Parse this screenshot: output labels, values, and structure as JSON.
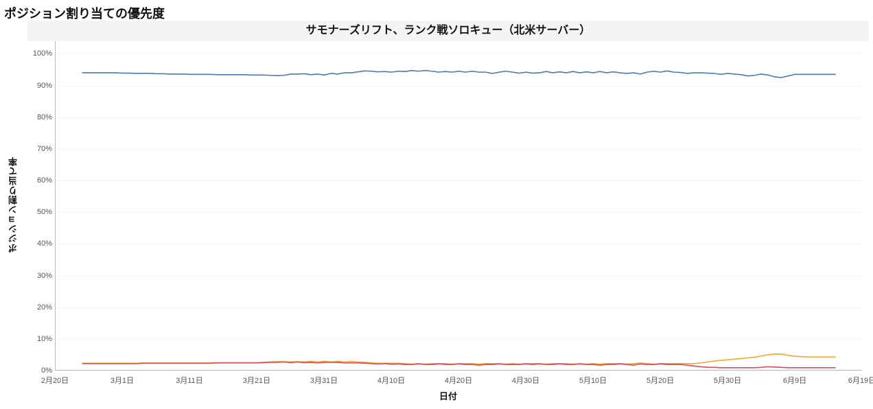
{
  "section_title": "ポジション割り当ての優先度",
  "chart": {
    "type": "line",
    "title": "サモナーズリフト、ランク戦ソロキュー（北米サーバー）",
    "title_fontsize": 16,
    "title_background": "#f4f4f4",
    "x_axis": {
      "label": "日付",
      "label_fontsize": 13,
      "ticks": [
        "2月20日",
        "3月1日",
        "3月11日",
        "3月21日",
        "3月31日",
        "4月10日",
        "4月20日",
        "4月30日",
        "5月10日",
        "5月20日",
        "5月30日",
        "6月9日",
        "6月19日"
      ],
      "tick_fontsize": 11,
      "tick_color": "#555555",
      "range_index": [
        0,
        120
      ]
    },
    "y_axis": {
      "label": "ポジション割り当て率",
      "label_fontsize": 13,
      "ticks": [
        "0%",
        "10%",
        "20%",
        "30%",
        "40%",
        "50%",
        "60%",
        "70%",
        "80%",
        "90%",
        "100%"
      ],
      "tick_values": [
        0,
        10,
        20,
        30,
        40,
        50,
        60,
        70,
        80,
        90,
        100
      ],
      "tick_fontsize": 11,
      "tick_color": "#555555",
      "ylim": [
        0,
        104
      ],
      "grid_color": "#f6f6f6"
    },
    "plot_background": "#ffffff",
    "axis_line_color": "#b9b9b9",
    "line_width": 1.6,
    "series": [
      {
        "name": "primary",
        "color": "#4a78b5",
        "x_start": 4,
        "x_end": 116,
        "values": [
          94.0,
          94.0,
          94.0,
          94.0,
          94.0,
          94.0,
          93.9,
          93.9,
          93.8,
          93.8,
          93.8,
          93.7,
          93.7,
          93.6,
          93.6,
          93.6,
          93.5,
          93.5,
          93.5,
          93.5,
          93.4,
          93.4,
          93.4,
          93.4,
          93.4,
          93.3,
          93.3,
          93.3,
          93.2,
          93.1,
          93.2,
          93.6,
          93.6,
          93.7,
          93.4,
          93.6,
          93.3,
          93.8,
          93.6,
          94.0,
          94.0,
          94.3,
          94.6,
          94.5,
          94.3,
          94.4,
          94.2,
          94.5,
          94.4,
          94.7,
          94.5,
          94.7,
          94.5,
          94.2,
          94.4,
          94.2,
          94.5,
          94.2,
          94.5,
          94.2,
          94.2,
          93.8,
          94.2,
          94.5,
          94.2,
          93.9,
          94.2,
          93.9,
          94.0,
          94.4,
          94.0,
          94.3,
          94.0,
          94.4,
          94.0,
          94.3,
          94.0,
          94.4,
          94.0,
          94.3,
          94.0,
          93.8,
          94.0,
          93.6,
          94.2,
          94.5,
          94.2,
          94.6,
          94.2,
          94.1,
          93.8,
          94.0,
          94.0,
          93.9,
          93.8,
          93.5,
          93.8,
          93.6,
          93.4,
          93.0,
          93.2,
          93.6,
          93.3,
          92.7,
          92.5,
          93.0,
          93.5,
          93.5,
          93.5,
          93.5,
          93.5,
          93.5,
          93.5
        ]
      },
      {
        "name": "secondary",
        "color": "#f5a623",
        "x_start": 4,
        "x_end": 116,
        "values": [
          2.1,
          2.1,
          2.1,
          2.1,
          2.1,
          2.1,
          2.1,
          2.1,
          2.1,
          2.2,
          2.2,
          2.2,
          2.2,
          2.2,
          2.2,
          2.2,
          2.2,
          2.2,
          2.2,
          2.2,
          2.3,
          2.3,
          2.3,
          2.3,
          2.3,
          2.3,
          2.3,
          2.4,
          2.5,
          2.6,
          2.6,
          2.5,
          2.6,
          2.5,
          2.7,
          2.5,
          2.7,
          2.5,
          2.7,
          2.5,
          2.7,
          2.5,
          2.4,
          2.2,
          2.1,
          2.1,
          2.1,
          2.1,
          2.0,
          1.8,
          2.0,
          1.8,
          2.0,
          2.0,
          2.0,
          1.8,
          2.0,
          2.0,
          2.0,
          1.8,
          2.0,
          2.0,
          2.0,
          1.8,
          2.0,
          1.8,
          2.0,
          2.0,
          2.0,
          1.8,
          2.0,
          2.0,
          2.0,
          1.8,
          2.0,
          1.8,
          2.0,
          1.8,
          2.0,
          2.0,
          2.0,
          1.8,
          2.0,
          2.2,
          2.0,
          1.8,
          2.0,
          2.0,
          2.0,
          2.0,
          2.0,
          2.0,
          2.2,
          2.5,
          2.8,
          3.0,
          3.2,
          3.4,
          3.6,
          3.8,
          4.0,
          4.4,
          4.8,
          5.0,
          5.0,
          4.6,
          4.3,
          4.2,
          4.1,
          4.1,
          4.1,
          4.1,
          4.1
        ]
      },
      {
        "name": "other",
        "color": "#d94a5a",
        "x_start": 4,
        "x_end": 116,
        "values": [
          2.0,
          2.0,
          2.0,
          2.0,
          2.0,
          2.0,
          2.0,
          2.0,
          2.0,
          2.1,
          2.1,
          2.1,
          2.1,
          2.1,
          2.1,
          2.1,
          2.1,
          2.1,
          2.1,
          2.1,
          2.2,
          2.2,
          2.2,
          2.2,
          2.2,
          2.2,
          2.2,
          2.3,
          2.4,
          2.4,
          2.5,
          2.3,
          2.5,
          2.3,
          2.4,
          2.2,
          2.4,
          2.4,
          2.4,
          2.2,
          2.2,
          2.2,
          2.1,
          2.0,
          1.9,
          2.0,
          1.8,
          1.9,
          1.7,
          1.7,
          1.9,
          1.7,
          1.7,
          1.9,
          1.7,
          1.7,
          1.9,
          1.7,
          1.7,
          1.5,
          1.7,
          1.7,
          1.9,
          1.7,
          1.7,
          1.7,
          1.9,
          1.7,
          1.9,
          1.7,
          1.7,
          1.9,
          1.7,
          1.7,
          1.9,
          1.7,
          1.7,
          1.5,
          1.7,
          1.7,
          1.9,
          1.7,
          1.5,
          1.9,
          1.7,
          1.7,
          1.9,
          1.7,
          1.7,
          1.7,
          1.5,
          1.2,
          1.0,
          0.8,
          0.8,
          0.7,
          0.7,
          0.7,
          0.7,
          0.7,
          0.7,
          0.8,
          1.0,
          0.9,
          0.8,
          0.7,
          0.7,
          0.7,
          0.7,
          0.7,
          0.7,
          0.7,
          0.7
        ]
      }
    ]
  }
}
